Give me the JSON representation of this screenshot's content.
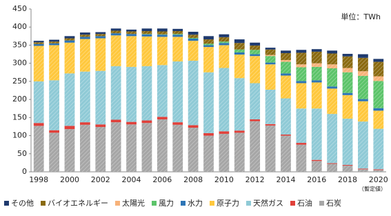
{
  "chart_data": {
    "type": "stacked_bar",
    "unit_label": "単位：TWh",
    "annotation": "（暫定値）",
    "categories": [
      "1998",
      null,
      "2000",
      null,
      "2002",
      null,
      "2004",
      null,
      "2006",
      null,
      "2008",
      null,
      "2010",
      null,
      "2012",
      null,
      "2014",
      null,
      "2016",
      null,
      "2018",
      null,
      "2020"
    ],
    "ylim": [
      0,
      450
    ],
    "yticks": [
      0,
      50,
      100,
      150,
      200,
      250,
      300,
      350,
      400,
      450
    ],
    "legend": "bottom",
    "series": [
      {
        "name": "石炭",
        "color": "#a6a6a6",
        "values": [
          127,
          108,
          118,
          130,
          124,
          137,
          131,
          135,
          145,
          130,
          122,
          100,
          105,
          108,
          140,
          128,
          100,
          75,
          30,
          22,
          17,
          7,
          5
        ]
      },
      {
        "name": "石油",
        "color": "#e0403a",
        "values": [
          8,
          7,
          9,
          7,
          7,
          7,
          7,
          7,
          7,
          7,
          7,
          7,
          7,
          6,
          5,
          4,
          3,
          5,
          3,
          2,
          2,
          2,
          2
        ]
      },
      {
        "name": "天然ガス",
        "color": "#8fcad6",
        "values": [
          115,
          138,
          145,
          140,
          148,
          148,
          152,
          150,
          143,
          168,
          178,
          168,
          175,
          145,
          100,
          95,
          100,
          95,
          142,
          136,
          128,
          130,
          112
        ]
      },
      {
        "name": "原子力",
        "color": "#ffc83d",
        "values": [
          98,
          97,
          85,
          90,
          90,
          85,
          85,
          82,
          78,
          68,
          55,
          70,
          63,
          65,
          75,
          70,
          63,
          70,
          72,
          70,
          65,
          56,
          50
        ]
      },
      {
        "name": "水力",
        "color": "#2e75b6",
        "values": [
          5,
          5,
          6,
          6,
          6,
          6,
          6,
          6,
          6,
          6,
          6,
          5,
          6,
          6,
          5,
          5,
          6,
          6,
          6,
          6,
          6,
          6,
          7
        ]
      },
      {
        "name": "風力",
        "color": "#5cc46a",
        "values": [
          0,
          0,
          0,
          0,
          0,
          0,
          0,
          1,
          1,
          2,
          2,
          4,
          4,
          8,
          12,
          18,
          32,
          38,
          37,
          50,
          57,
          64,
          75
        ]
      },
      {
        "name": "太陽光",
        "color": "#f7b27a",
        "values": [
          0,
          0,
          0,
          0,
          0,
          0,
          0,
          0,
          0,
          0,
          0,
          0,
          0,
          0,
          0,
          3,
          5,
          8,
          10,
          11,
          12,
          13,
          13
        ]
      },
      {
        "name": "バイオエネルギー",
        "color": "#8a6a10",
        "values": [
          5,
          5,
          6,
          6,
          6,
          7,
          7,
          8,
          8,
          8,
          9,
          12,
          12,
          18,
          12,
          15,
          19,
          32,
          32,
          30,
          32,
          37,
          40
        ]
      },
      {
        "name": "その他",
        "color": "#1f3a6e",
        "values": [
          4,
          5,
          6,
          6,
          5,
          6,
          5,
          7,
          8,
          6,
          8,
          9,
          8,
          10,
          8,
          5,
          7,
          8,
          7,
          8,
          7,
          10,
          8
        ]
      }
    ]
  }
}
